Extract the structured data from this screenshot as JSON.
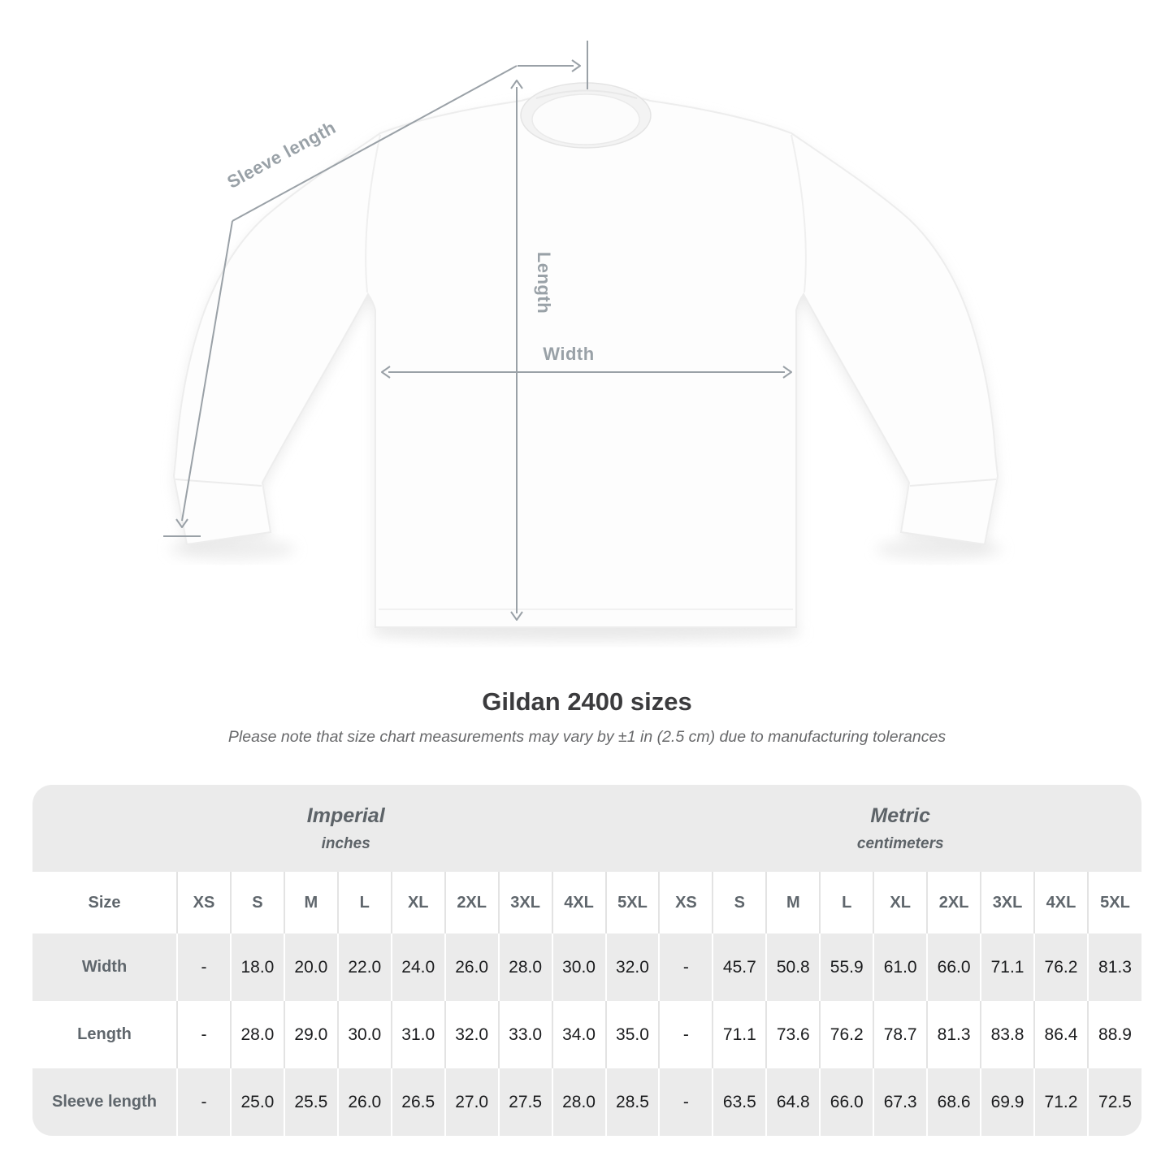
{
  "diagram": {
    "sleeve_length_label": "Sleeve length",
    "length_label": "Length",
    "width_label": "Width"
  },
  "heading": {
    "title": "Gildan 2400 sizes",
    "subtitle": "Please note that size chart measurements may vary by ±1 in (2.5 cm) due to manufacturing tolerances"
  },
  "size_table": {
    "groups": [
      {
        "label": "Imperial",
        "unit": "inches"
      },
      {
        "label": "Metric",
        "unit": "centimeters"
      }
    ],
    "corner_label": "Size",
    "size_columns": [
      "XS",
      "S",
      "M",
      "L",
      "XL",
      "2XL",
      "3XL",
      "4XL",
      "5XL",
      "XS",
      "S",
      "M",
      "L",
      "XL",
      "2XL",
      "3XL",
      "4XL",
      "5XL"
    ],
    "rows": [
      {
        "label": "Width",
        "values": [
          "-",
          "18.0",
          "20.0",
          "22.0",
          "24.0",
          "26.0",
          "28.0",
          "30.0",
          "32.0",
          "-",
          "45.7",
          "50.8",
          "55.9",
          "61.0",
          "66.0",
          "71.1",
          "76.2",
          "81.3"
        ]
      },
      {
        "label": "Length",
        "values": [
          "-",
          "28.0",
          "29.0",
          "30.0",
          "31.0",
          "32.0",
          "33.0",
          "34.0",
          "35.0",
          "-",
          "71.1",
          "73.6",
          "76.2",
          "78.7",
          "81.3",
          "83.8",
          "86.4",
          "88.9"
        ]
      },
      {
        "label": "Sleeve length",
        "values": [
          "-",
          "25.0",
          "25.5",
          "26.0",
          "26.5",
          "27.0",
          "27.5",
          "28.0",
          "28.5",
          "-",
          "63.5",
          "64.8",
          "66.0",
          "67.3",
          "68.6",
          "69.9",
          "71.2",
          "72.5"
        ]
      }
    ]
  },
  "colors": {
    "table_stripe": "#ebebeb",
    "separator_on_white": "#e3e3e3",
    "separator_on_gray": "#ffffff",
    "measure_line": "#9aa1a7",
    "measure_label_text": "#99a1a7",
    "table_label_text": "#5f666c",
    "value_text": "#1b1c1e",
    "title_text": "#3b3b3d"
  },
  "chart_data": {
    "type": "table",
    "title": "Gildan 2400 sizes",
    "note": "Please note that size chart measurements may vary by ±1 in (2.5 cm) due to manufacturing tolerances",
    "columns": [
      "XS",
      "S",
      "M",
      "L",
      "XL",
      "2XL",
      "3XL",
      "4XL",
      "5XL"
    ],
    "unit_groups": [
      "inches",
      "centimeters"
    ],
    "rows": [
      {
        "measurement": "Width",
        "inches": [
          null,
          18.0,
          20.0,
          22.0,
          24.0,
          26.0,
          28.0,
          30.0,
          32.0
        ],
        "centimeters": [
          null,
          45.7,
          50.8,
          55.9,
          61.0,
          66.0,
          71.1,
          76.2,
          81.3
        ]
      },
      {
        "measurement": "Length",
        "inches": [
          null,
          28.0,
          29.0,
          30.0,
          31.0,
          32.0,
          33.0,
          34.0,
          35.0
        ],
        "centimeters": [
          null,
          71.1,
          73.6,
          76.2,
          78.7,
          81.3,
          83.8,
          86.4,
          88.9
        ]
      },
      {
        "measurement": "Sleeve length",
        "inches": [
          null,
          25.0,
          25.5,
          26.0,
          26.5,
          27.0,
          27.5,
          28.0,
          28.5
        ],
        "centimeters": [
          null,
          63.5,
          64.8,
          66.0,
          67.3,
          68.6,
          69.9,
          71.2,
          72.5
        ]
      }
    ]
  }
}
